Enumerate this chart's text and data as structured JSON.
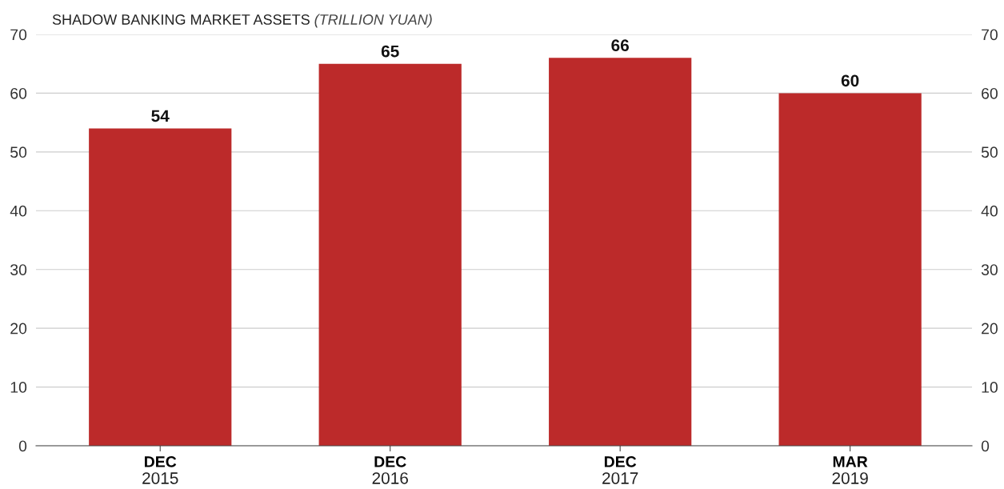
{
  "chart_data": {
    "type": "bar",
    "title": "SHADOW BANKING MARKET ASSETS",
    "subtitle": "(TRILLION YUAN)",
    "categories": [
      "DEC 2015",
      "DEC 2016",
      "DEC 2017",
      "MAR 2019"
    ],
    "values": [
      54,
      65,
      66,
      60
    ],
    "color": "#bc2a2a",
    "ylim": [
      0,
      70
    ],
    "yticks": [
      0,
      10,
      20,
      30,
      40,
      50,
      60,
      70
    ],
    "y2lim": [
      0,
      70
    ],
    "y2ticks": [
      0,
      10,
      20,
      30,
      40,
      50,
      60,
      70
    ],
    "grid": "y",
    "data_labels": true
  }
}
